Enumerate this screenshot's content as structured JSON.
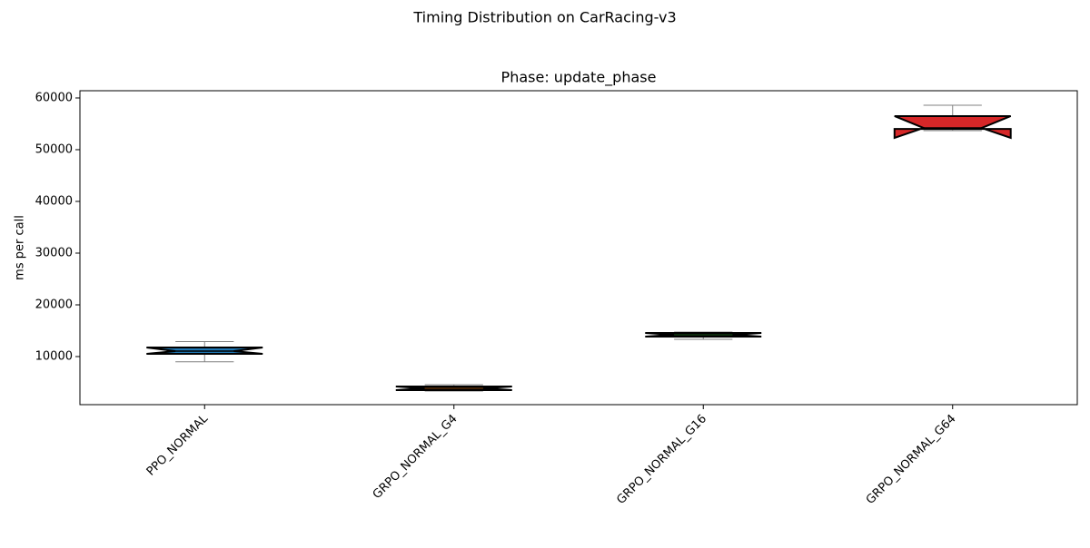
{
  "chart_data": {
    "type": "box",
    "title": "Timing Distribution on CarRacing-v3",
    "subtitle": "Phase: update_phase",
    "ylabel": "ms per call",
    "categories": [
      "PPO_NORMAL",
      "GRPO_NORMAL_G4",
      "GRPO_NORMAL_G16",
      "GRPO_NORMAL_G64"
    ],
    "boxes": [
      {
        "color": "#1f77b4",
        "whislo": 9000,
        "q1": 10530,
        "med": 11050,
        "q3": 11750,
        "whishi": 12900,
        "notch_lo": 10530,
        "notch_hi": 11750
      },
      {
        "color": "#ff7f0e",
        "whislo": 3330,
        "q1": 3510,
        "med": 3860,
        "q3": 4210,
        "whishi": 4560,
        "notch_lo": 3510,
        "notch_hi": 4210
      },
      {
        "color": "#2ca02c",
        "whislo": 13330,
        "q1": 13860,
        "med": 14210,
        "q3": 14560,
        "whishi": 14740,
        "notch_lo": 13860,
        "notch_hi": 14560
      },
      {
        "color": "#d62728",
        "whislo": 53680,
        "q1": 54000,
        "med": 54200,
        "q3": 56490,
        "whishi": 58600,
        "notch_lo": 52280,
        "notch_hi": 56490
      }
    ],
    "whisker_color": "#808080",
    "ylim": [
      700,
      61400
    ],
    "yticks": [
      10000,
      20000,
      30000,
      40000,
      50000,
      60000
    ]
  }
}
